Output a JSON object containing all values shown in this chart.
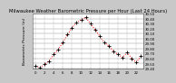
{
  "title": "Milwaukee Weather Barometric Pressure per Hour (Last 24 Hours)",
  "left_label": "Barometric Pressure (in)",
  "bg_color": "#c8c8c8",
  "plot_bg_color": "#ffffff",
  "line_color": "#ff0000",
  "marker_color": "#000000",
  "grid_color": "#888888",
  "hours": [
    0,
    1,
    2,
    3,
    4,
    5,
    6,
    7,
    8,
    9,
    10,
    11,
    12,
    13,
    14,
    15,
    16,
    17,
    18,
    19,
    20,
    21,
    22,
    23
  ],
  "pressure": [
    29.45,
    29.42,
    29.48,
    29.55,
    29.68,
    29.78,
    29.92,
    30.08,
    30.22,
    30.32,
    30.38,
    30.42,
    30.3,
    30.18,
    30.05,
    29.92,
    29.85,
    29.75,
    29.68,
    29.62,
    29.72,
    29.6,
    29.52,
    29.65
  ],
  "ylim_min": 29.4,
  "ylim_max": 30.5,
  "yticks": [
    29.4,
    29.5,
    29.6,
    29.7,
    29.8,
    29.9,
    30.0,
    30.1,
    30.2,
    30.3,
    30.4,
    30.5
  ],
  "xticks": [
    0,
    2,
    4,
    6,
    8,
    10,
    12,
    14,
    16,
    18,
    20,
    22
  ],
  "xtick_labels": [
    "0",
    "2",
    "4",
    "6",
    "8",
    "10",
    "12",
    "14",
    "16",
    "18",
    "20",
    "22"
  ],
  "title_fontsize": 3.8,
  "tick_fontsize": 2.8,
  "label_fontsize": 3.2
}
